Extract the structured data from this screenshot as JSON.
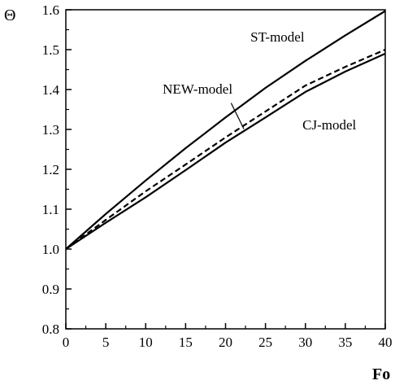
{
  "chart_data": {
    "type": "line",
    "xlabel": "Fo",
    "ylabel": "Θ",
    "xlim": [
      0,
      40
    ],
    "ylim": [
      0.8,
      1.6
    ],
    "xticks": [
      "0",
      "5",
      "10",
      "15",
      "20",
      "25",
      "30",
      "35",
      "40"
    ],
    "yticks": [
      "0.8",
      "0.9",
      "1.0",
      "1.1",
      "1.2",
      "1.3",
      "1.4",
      "1.5",
      "1.6"
    ],
    "grid": false,
    "series": [
      {
        "name": "ST-model",
        "style": "solid",
        "x": [
          0,
          5,
          10,
          15,
          20,
          25,
          30,
          35,
          40
        ],
        "y": [
          1.0,
          1.088,
          1.172,
          1.253,
          1.33,
          1.404,
          1.472,
          1.536,
          1.597
        ]
      },
      {
        "name": "NEW-model",
        "style": "dashed",
        "x": [
          0,
          5,
          10,
          15,
          20,
          25,
          30,
          35,
          40
        ],
        "y": [
          1.0,
          1.073,
          1.145,
          1.212,
          1.28,
          1.345,
          1.41,
          1.457,
          1.5
        ]
      },
      {
        "name": "CJ-model",
        "style": "solid",
        "x": [
          0,
          5,
          10,
          15,
          20,
          25,
          30,
          35,
          40
        ],
        "y": [
          1.0,
          1.066,
          1.13,
          1.198,
          1.267,
          1.33,
          1.394,
          1.445,
          1.49
        ]
      }
    ],
    "annotations": [
      {
        "text": "ST-model",
        "x": 26.5,
        "y": 1.52
      },
      {
        "text": "NEW-model",
        "x": 16.5,
        "y": 1.39
      },
      {
        "text": "CJ-model",
        "x": 33.0,
        "y": 1.3
      }
    ],
    "leader": {
      "from": [
        20.7,
        1.366
      ],
      "to": [
        22.3,
        1.301
      ]
    }
  }
}
